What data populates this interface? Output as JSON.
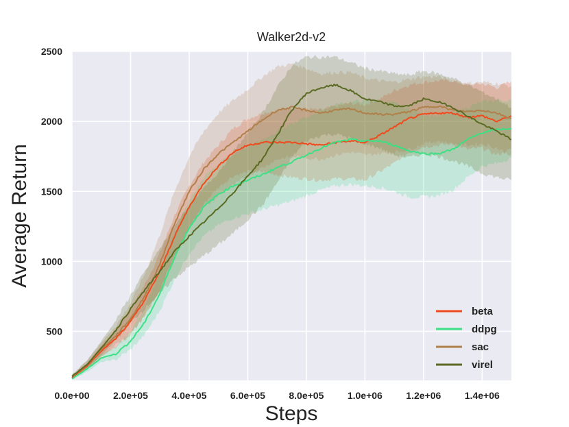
{
  "chart_data": {
    "type": "line",
    "title": "Walker2d-v2",
    "xlabel": "Steps",
    "ylabel": "Average Return",
    "xlim": [
      0,
      1500000
    ],
    "ylim": [
      150,
      2500
    ],
    "grid": true,
    "legend_position": "bottom-right",
    "x_ticks": [
      0,
      200000,
      400000,
      600000,
      800000,
      1000000,
      1200000,
      1400000
    ],
    "x_tick_labels": [
      "0.0e+00",
      "2.0e+05",
      "4.0e+05",
      "6.0e+05",
      "8.0e+05",
      "1.0e+06",
      "1.2e+06",
      "1.4e+06"
    ],
    "y_ticks": [
      500,
      1000,
      1500,
      2000,
      2500
    ],
    "y_tick_labels": [
      "500",
      "1000",
      "1500",
      "2000",
      "2500"
    ],
    "x": [
      0,
      50000,
      100000,
      150000,
      200000,
      250000,
      300000,
      350000,
      400000,
      450000,
      500000,
      550000,
      600000,
      650000,
      700000,
      750000,
      800000,
      850000,
      900000,
      950000,
      1000000,
      1050000,
      1100000,
      1150000,
      1200000,
      1250000,
      1300000,
      1350000,
      1400000,
      1450000,
      1500000
    ],
    "series": [
      {
        "name": "beta",
        "color": "#f04a1c",
        "values": [
          170,
          250,
          360,
          450,
          570,
          730,
          930,
          1180,
          1390,
          1560,
          1680,
          1780,
          1830,
          1850,
          1850,
          1850,
          1840,
          1830,
          1850,
          1860,
          1850,
          1900,
          1960,
          2020,
          2050,
          2060,
          2060,
          2030,
          2040,
          2000,
          2040
        ],
        "lower": [
          165,
          230,
          320,
          390,
          480,
          620,
          800,
          1030,
          1240,
          1410,
          1530,
          1610,
          1640,
          1640,
          1620,
          1600,
          1590,
          1580,
          1590,
          1590,
          1580,
          1640,
          1700,
          1780,
          1820,
          1830,
          1840,
          1800,
          1810,
          1760,
          1800
        ],
        "upper": [
          180,
          270,
          400,
          510,
          660,
          840,
          1060,
          1330,
          1540,
          1710,
          1830,
          1950,
          2020,
          2060,
          2080,
          2100,
          2090,
          2080,
          2110,
          2130,
          2120,
          2160,
          2220,
          2260,
          2280,
          2290,
          2290,
          2260,
          2270,
          2240,
          2290
        ]
      },
      {
        "name": "ddpg",
        "color": "#3ce085",
        "values": [
          160,
          230,
          310,
          340,
          430,
          570,
          770,
          1030,
          1240,
          1390,
          1480,
          1540,
          1580,
          1620,
          1670,
          1710,
          1760,
          1810,
          1850,
          1870,
          1860,
          1860,
          1830,
          1790,
          1770,
          1770,
          1800,
          1870,
          1920,
          1940,
          1950
        ],
        "lower": [
          155,
          210,
          280,
          300,
          370,
          480,
          650,
          870,
          1060,
          1180,
          1260,
          1310,
          1340,
          1370,
          1400,
          1430,
          1470,
          1510,
          1540,
          1550,
          1540,
          1530,
          1500,
          1460,
          1460,
          1470,
          1510,
          1600,
          1680,
          1700,
          1740
        ],
        "upper": [
          170,
          250,
          340,
          390,
          500,
          680,
          920,
          1210,
          1430,
          1600,
          1700,
          1770,
          1820,
          1870,
          1930,
          1980,
          2030,
          2080,
          2120,
          2140,
          2150,
          2150,
          2130,
          2090,
          2050,
          2040,
          2060,
          2100,
          2140,
          2150,
          2150
        ]
      },
      {
        "name": "sac",
        "color": "#b0804a",
        "values": [
          175,
          260,
          370,
          470,
          590,
          760,
          980,
          1270,
          1500,
          1660,
          1770,
          1850,
          1930,
          2010,
          2080,
          2100,
          2080,
          2060,
          2080,
          2090,
          2060,
          2050,
          2050,
          2070,
          2100,
          2110,
          2080,
          2070,
          2080,
          2060,
          2020
        ],
        "lower": [
          165,
          230,
          320,
          400,
          480,
          610,
          790,
          1040,
          1240,
          1380,
          1470,
          1540,
          1610,
          1670,
          1730,
          1750,
          1740,
          1730,
          1760,
          1780,
          1760,
          1770,
          1780,
          1800,
          1840,
          1860,
          1840,
          1830,
          1840,
          1810,
          1760
        ],
        "upper": [
          185,
          290,
          420,
          540,
          700,
          920,
          1190,
          1500,
          1750,
          1930,
          2060,
          2150,
          2230,
          2320,
          2390,
          2410,
          2380,
          2340,
          2350,
          2350,
          2310,
          2290,
          2280,
          2300,
          2320,
          2320,
          2290,
          2270,
          2280,
          2270,
          2250
        ]
      },
      {
        "name": "virel",
        "color": "#5a6a22",
        "values": [
          180,
          260,
          380,
          510,
          660,
          800,
          930,
          1070,
          1180,
          1280,
          1380,
          1490,
          1610,
          1730,
          1900,
          2080,
          2200,
          2240,
          2260,
          2220,
          2160,
          2140,
          2110,
          2110,
          2160,
          2140,
          2100,
          2040,
          1980,
          1930,
          1870
        ],
        "lower": [
          170,
          230,
          330,
          440,
          560,
          670,
          770,
          880,
          960,
          1040,
          1120,
          1200,
          1300,
          1400,
          1560,
          1740,
          1860,
          1900,
          1910,
          1880,
          1840,
          1810,
          1760,
          1740,
          1770,
          1750,
          1720,
          1680,
          1630,
          1600,
          1580
        ],
        "upper": [
          190,
          290,
          430,
          580,
          760,
          930,
          1090,
          1260,
          1400,
          1520,
          1640,
          1780,
          1920,
          2060,
          2240,
          2400,
          2460,
          2460,
          2460,
          2420,
          2380,
          2360,
          2340,
          2330,
          2360,
          2340,
          2310,
          2260,
          2210,
          2160,
          2100
        ]
      }
    ]
  }
}
